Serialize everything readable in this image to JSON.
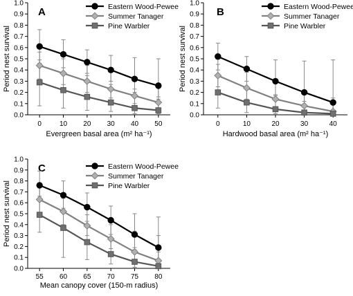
{
  "chart_data": [
    {
      "panel": "A",
      "type": "line",
      "xlabel": "Evergreen basal area (m² ha⁻¹)",
      "ylabel": "Period nest survival",
      "x": [
        0,
        10,
        20,
        30,
        40,
        50
      ],
      "xlim": [
        -5,
        55
      ],
      "ylim": [
        0,
        1
      ],
      "yticks": [
        0,
        0.1,
        0.2,
        0.3,
        0.4,
        0.5,
        0.6,
        0.7,
        0.8,
        0.9,
        1.0
      ],
      "ytick_labels": [
        "0.0",
        "0.1",
        "0.2",
        "0.3",
        "0.4",
        "0.5",
        "0.6",
        "0.7",
        "0.8",
        "0.9",
        "1.0"
      ],
      "xtick_labels": [
        "0",
        "10",
        "20",
        "30",
        "40",
        "50"
      ],
      "legend_position": "top-right",
      "series": [
        {
          "name": "Eastern Wood-Pewee",
          "marker": "circle",
          "color": "#000000",
          "fill": "#000000",
          "values": [
            0.61,
            0.54,
            0.47,
            0.4,
            0.32,
            0.26
          ],
          "err_low": [
            0.46,
            0.42,
            0.37,
            0.3,
            0.23,
            0.16
          ],
          "err_high": [
            0.76,
            0.67,
            0.58,
            0.53,
            0.51,
            0.5
          ]
        },
        {
          "name": "Summer Tanager",
          "marker": "diamond",
          "color": "#808080",
          "fill": "#b0b0b0",
          "values": [
            0.44,
            0.37,
            0.3,
            0.23,
            0.17,
            0.11
          ],
          "err_low": [
            0.32,
            0.27,
            0.2,
            0.15,
            0.1,
            0.05
          ],
          "err_high": [
            0.56,
            0.5,
            0.44,
            0.38,
            0.33,
            0.28
          ]
        },
        {
          "name": "Pine Warbler",
          "marker": "square",
          "color": "#555555",
          "fill": "#707070",
          "values": [
            0.29,
            0.22,
            0.16,
            0.11,
            0.06,
            0.04
          ],
          "err_low": [
            0.08,
            0.06,
            0.04,
            0.03,
            0.01,
            0.01
          ],
          "err_high": [
            0.49,
            0.42,
            0.35,
            0.27,
            0.2,
            0.14
          ]
        }
      ]
    },
    {
      "panel": "B",
      "type": "line",
      "xlabel": "Hardwood basal area (m² ha⁻¹)",
      "ylabel": "Period nest survival",
      "x": [
        0,
        10,
        20,
        30,
        40
      ],
      "xlim": [
        -5,
        45
      ],
      "ylim": [
        0,
        1
      ],
      "yticks": [
        0,
        0.1,
        0.2,
        0.3,
        0.4,
        0.5,
        0.6,
        0.7,
        0.8,
        0.9,
        1.0
      ],
      "ytick_labels": [
        "0.0",
        "0.1",
        "0.2",
        "0.3",
        "0.4",
        "0.5",
        "0.6",
        "0.7",
        "0.8",
        "0.9",
        "1.0"
      ],
      "xtick_labels": [
        "0",
        "10",
        "20",
        "30",
        "40"
      ],
      "legend_position": "top-right",
      "series": [
        {
          "name": "Eastern Wood-Pewee",
          "marker": "circle",
          "color": "#000000",
          "fill": "#000000",
          "values": [
            0.52,
            0.41,
            0.3,
            0.2,
            0.11
          ],
          "err_low": [
            0.4,
            0.3,
            0.18,
            0.08,
            0.02
          ],
          "err_high": [
            0.64,
            0.52,
            0.49,
            0.48,
            0.49
          ]
        },
        {
          "name": "Summer Tanager",
          "marker": "diamond",
          "color": "#808080",
          "fill": "#b0b0b0",
          "values": [
            0.35,
            0.24,
            0.14,
            0.08,
            0.03
          ],
          "err_low": [
            0.25,
            0.14,
            0.06,
            0.02,
            0.0
          ],
          "err_high": [
            0.45,
            0.38,
            0.28,
            0.21,
            0.15
          ]
        },
        {
          "name": "Pine Warbler",
          "marker": "square",
          "color": "#555555",
          "fill": "#707070",
          "values": [
            0.2,
            0.11,
            0.05,
            0.02,
            0.01
          ],
          "err_low": [
            0.06,
            0.02,
            0.01,
            0.0,
            0.0
          ],
          "err_high": [
            0.34,
            0.25,
            0.17,
            0.12,
            0.11
          ]
        }
      ]
    },
    {
      "panel": "C",
      "type": "line",
      "xlabel": "Mean canopy cover (150-m radius)",
      "ylabel": "Period nest survival",
      "x": [
        55,
        60,
        65,
        70,
        75,
        80
      ],
      "xlim": [
        52.5,
        82.5
      ],
      "ylim": [
        0,
        1
      ],
      "yticks": [
        0,
        0.1,
        0.2,
        0.3,
        0.4,
        0.5,
        0.6,
        0.7,
        0.8,
        0.9,
        1.0
      ],
      "ytick_labels": [
        "0.0",
        "0.1",
        "0.2",
        "0.3",
        "0.4",
        "0.5",
        "0.6",
        "0.7",
        "0.8",
        "0.9",
        "1.0"
      ],
      "xtick_labels": [
        "55",
        "60",
        "65",
        "70",
        "75",
        "80"
      ],
      "legend_position": "top-right",
      "series": [
        {
          "name": "Eastern Wood-Pewee",
          "marker": "circle",
          "color": "#000000",
          "fill": "#000000",
          "values": [
            0.76,
            0.67,
            0.56,
            0.44,
            0.31,
            0.19
          ],
          "err_low": [
            0.62,
            0.52,
            0.43,
            0.31,
            0.17,
            0.06
          ],
          "err_high": [
            0.89,
            0.8,
            0.69,
            0.57,
            0.5,
            0.47
          ]
        },
        {
          "name": "Summer Tanager",
          "marker": "diamond",
          "color": "#808080",
          "fill": "#b0b0b0",
          "values": [
            0.63,
            0.52,
            0.39,
            0.27,
            0.15,
            0.07
          ],
          "err_low": [
            0.5,
            0.4,
            0.3,
            0.18,
            0.08,
            0.02
          ],
          "err_high": [
            0.76,
            0.64,
            0.49,
            0.4,
            0.34,
            0.3
          ]
        },
        {
          "name": "Pine Warbler",
          "marker": "square",
          "color": "#555555",
          "fill": "#707070",
          "values": [
            0.49,
            0.37,
            0.24,
            0.13,
            0.06,
            0.02
          ],
          "err_low": [
            0.33,
            0.1,
            0.08,
            0.04,
            0.01,
            0.0
          ],
          "err_high": [
            0.66,
            0.55,
            0.4,
            0.28,
            0.19,
            0.15
          ]
        }
      ]
    }
  ]
}
